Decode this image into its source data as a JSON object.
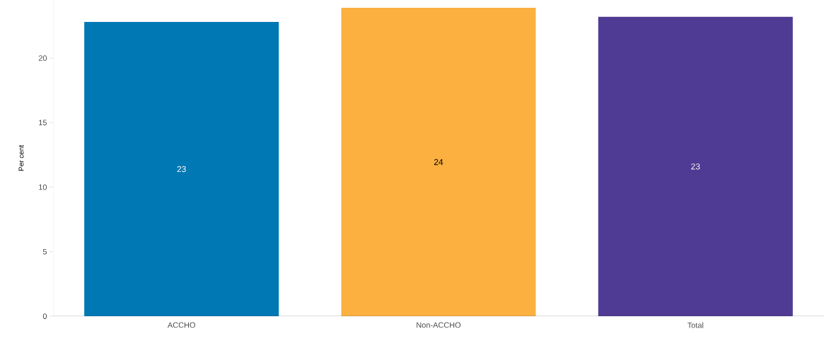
{
  "chart_data": {
    "type": "bar",
    "ylabel": "Per cent",
    "categories": [
      "ACCHO",
      "Non-ACCHO",
      "Total"
    ],
    "values": [
      22.8,
      23.9,
      23.2
    ],
    "value_labels": [
      "23",
      "24",
      "23"
    ],
    "colors": [
      "#0078b4",
      "#fbb040",
      "#4f3b93"
    ],
    "ylim": [
      0,
      24.5
    ],
    "yticks": [
      0,
      5,
      10,
      15,
      20
    ],
    "grid": false
  }
}
